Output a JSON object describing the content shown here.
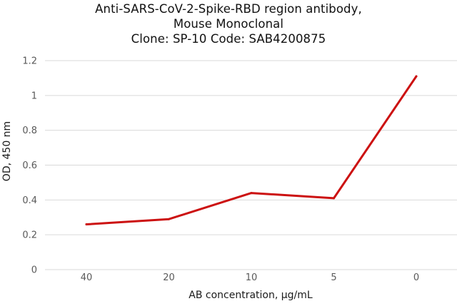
{
  "chart_data": {
    "type": "line",
    "title": [
      "Anti-SARS-CoV-2-Spike-RBD region antibody,",
      "Mouse Monoclonal",
      "Clone: SP-10  Code: SAB4200875"
    ],
    "xlabel": "AB concentration, µg/mL",
    "ylabel": "OD, 450 nm",
    "categories": [
      "40",
      "20",
      "10",
      "5",
      "0"
    ],
    "series": [
      {
        "values": [
          0.26,
          0.29,
          0.44,
          0.41,
          1.11
        ]
      }
    ],
    "ylim": [
      0,
      1.2
    ],
    "yticks": [
      "0",
      "0.2",
      "0.4",
      "0.6",
      "0.8",
      "1",
      "1.2"
    ],
    "grid": true,
    "line_color": "#cc1111",
    "grid_color": "#d9d9d9"
  }
}
